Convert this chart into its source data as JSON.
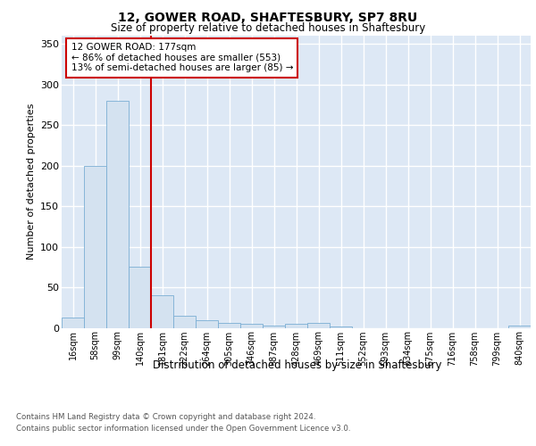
{
  "title1": "12, GOWER ROAD, SHAFTESBURY, SP7 8RU",
  "title2": "Size of property relative to detached houses in Shaftesbury",
  "xlabel": "Distribution of detached houses by size in Shaftesbury",
  "ylabel": "Number of detached properties",
  "bar_labels": [
    "16sqm",
    "58sqm",
    "99sqm",
    "140sqm",
    "181sqm",
    "222sqm",
    "264sqm",
    "305sqm",
    "346sqm",
    "387sqm",
    "428sqm",
    "469sqm",
    "511sqm",
    "552sqm",
    "593sqm",
    "634sqm",
    "675sqm",
    "716sqm",
    "758sqm",
    "799sqm",
    "840sqm"
  ],
  "bar_values": [
    13,
    200,
    280,
    75,
    40,
    15,
    9,
    6,
    5,
    3,
    5,
    6,
    2,
    0,
    0,
    0,
    0,
    0,
    0,
    0,
    3
  ],
  "bar_color": "#d4e2f0",
  "bar_edge_color": "#7aaed4",
  "vline_color": "#cc0000",
  "ylim": [
    0,
    360
  ],
  "yticks": [
    0,
    50,
    100,
    150,
    200,
    250,
    300,
    350
  ],
  "annotation_text": "12 GOWER ROAD: 177sqm\n← 86% of detached houses are smaller (553)\n13% of semi-detached houses are larger (85) →",
  "annotation_box_color": "#ffffff",
  "annotation_border_color": "#cc0000",
  "footer1": "Contains HM Land Registry data © Crown copyright and database right 2024.",
  "footer2": "Contains public sector information licensed under the Open Government Licence v3.0.",
  "fig_bg_color": "#ffffff",
  "plot_bg_color": "#dde8f5",
  "grid_color": "#ffffff"
}
